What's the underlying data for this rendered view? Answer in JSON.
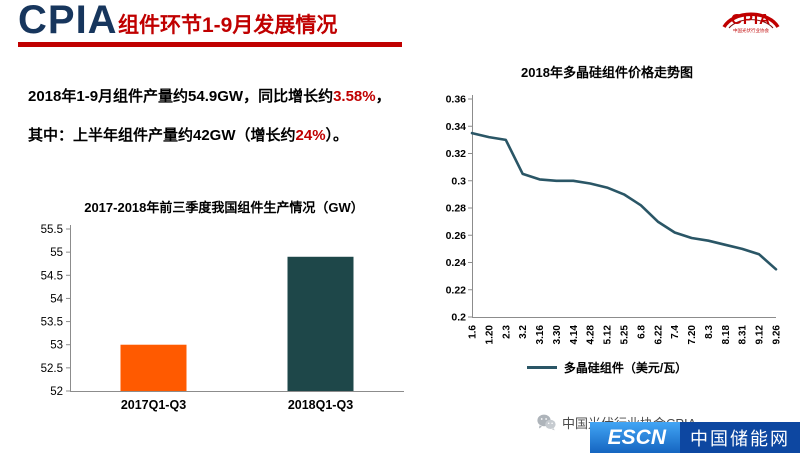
{
  "header": {
    "logo_text": "CPIA",
    "title": "组件环节1-9月发展情况",
    "corner_logo": {
      "text": "CPIA",
      "subtext": "中国光伏行业协会"
    }
  },
  "summary": {
    "line1": [
      {
        "text": "2018年1-9月组件产量约54.9GW，同比增长约"
      },
      {
        "text": "3.58%"
      },
      {
        "text": "，"
      }
    ],
    "line2": [
      {
        "text": "其中：上半年组件产量约42GW（增长约"
      },
      {
        "text": "24%"
      },
      {
        "text": "）。"
      }
    ]
  },
  "chart_data": [
    {
      "type": "bar",
      "title": "2017-2018年前三季度我国组件生产情况（GW）",
      "categories": [
        "2017Q1-Q3",
        "2018Q1-Q3"
      ],
      "values": [
        53,
        54.9
      ],
      "bar_colors": [
        "#ff5a00",
        "#1e4749"
      ],
      "ylim": [
        52,
        55.5
      ],
      "ytick_step": 0.5,
      "grid": false,
      "xlabel": "",
      "ylabel": ""
    },
    {
      "type": "line",
      "title": "2018年多晶硅组件价格走势图",
      "x": [
        "1.6",
        "1.20",
        "2.3",
        "3.2",
        "3.16",
        "3.30",
        "4.14",
        "4.28",
        "5.12",
        "5.25",
        "6.8",
        "6.22",
        "7.4",
        "7.20",
        "8.3",
        "8.18",
        "8.31",
        "9.12",
        "9.26"
      ],
      "values": [
        0.335,
        0.332,
        0.33,
        0.305,
        0.301,
        0.3,
        0.3,
        0.298,
        0.295,
        0.29,
        0.282,
        0.27,
        0.262,
        0.258,
        0.256,
        0.253,
        0.25,
        0.246,
        0.235
      ],
      "ylim": [
        0.2,
        0.36
      ],
      "ytick_step": 0.02,
      "line_color": "#2a5666",
      "legend": "多晶硅组件（美元/瓦）",
      "legend_position": "bottom",
      "grid": false
    }
  ],
  "footer": {
    "account_name": "中国光伏行业协会CPIA",
    "escn": {
      "brand": "ESCN",
      "site": "中国储能网"
    }
  },
  "colors": {
    "accent_red": "#c00000",
    "logo_navy": "#17365d",
    "bar_orange": "#ff5a00",
    "bar_teal": "#1e4749",
    "line_teal": "#2a5666",
    "axis_gray": "#8c8c8c",
    "escn_blue": "#1e88e5",
    "escn_dark_blue": "#0d47a1"
  }
}
